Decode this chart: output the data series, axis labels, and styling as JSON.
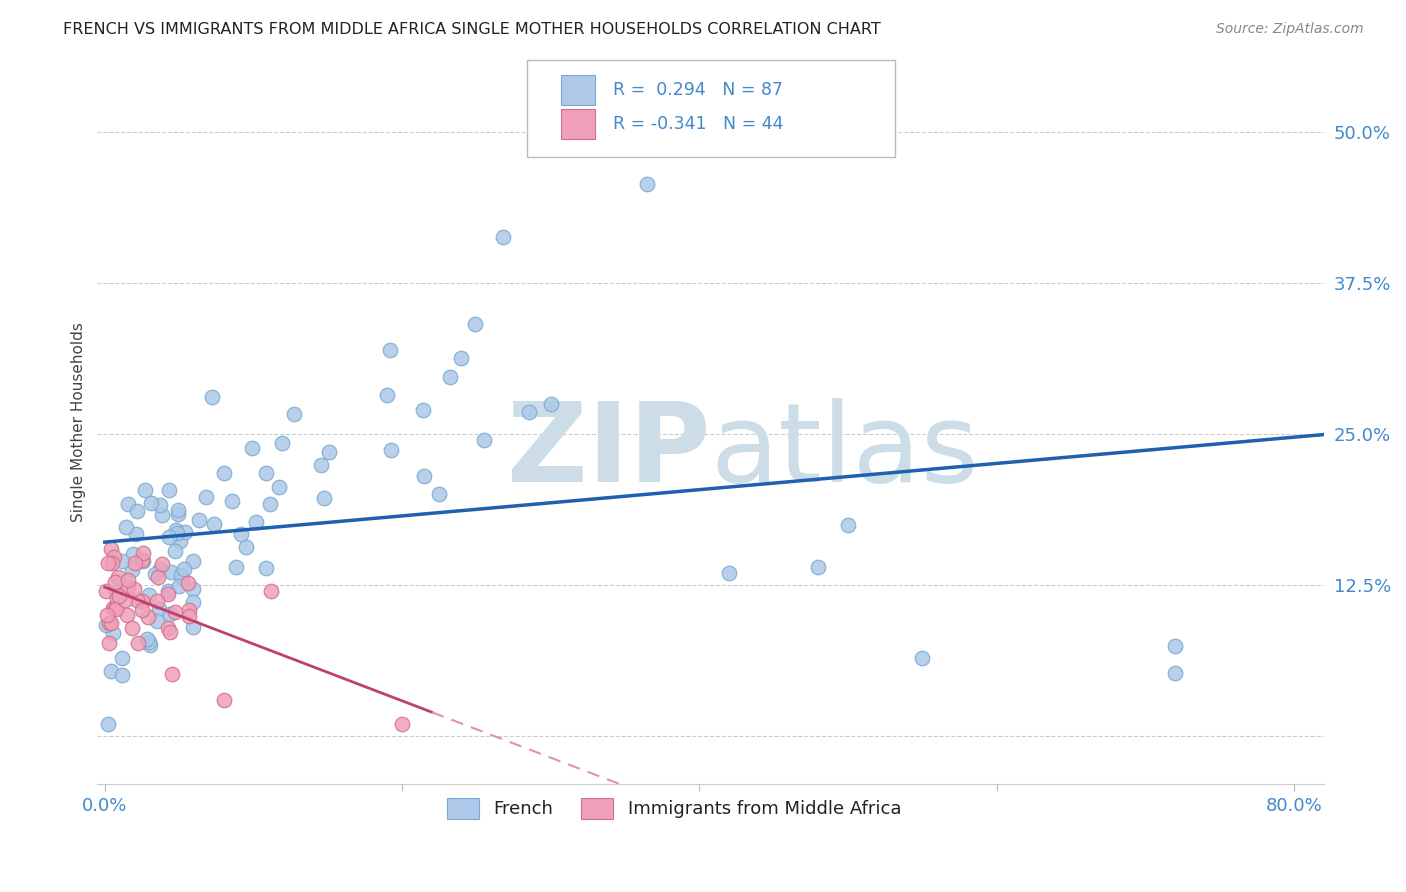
{
  "title": "FRENCH VS IMMIGRANTS FROM MIDDLE AFRICA SINGLE MOTHER HOUSEHOLDS CORRELATION CHART",
  "source": "Source: ZipAtlas.com",
  "ylabel": "Single Mother Households",
  "xlim": [
    -0.005,
    0.82
  ],
  "ylim": [
    -0.04,
    0.56
  ],
  "yticks": [
    0.0,
    0.125,
    0.25,
    0.375,
    0.5
  ],
  "ytick_labels": [
    "",
    "12.5%",
    "25.0%",
    "37.5%",
    "50.0%"
  ],
  "xticks": [
    0.0,
    0.2,
    0.4,
    0.6,
    0.8
  ],
  "xtick_labels": [
    "0.0%",
    "",
    "",
    "",
    "80.0%"
  ],
  "r_french": 0.294,
  "n_french": 87,
  "r_immigrants": -0.341,
  "n_immigrants": 44,
  "blue_scatter_color": "#adc8e8",
  "blue_scatter_edge": "#7aaad0",
  "blue_line_color": "#2060b0",
  "pink_scatter_color": "#f0a0b8",
  "pink_scatter_edge": "#d07090",
  "pink_line_color": "#c04070",
  "pink_dash_color": "#e090b0",
  "legend_label_french": "French",
  "legend_label_immigrants": "Immigrants from Middle Africa",
  "title_color": "#222222",
  "source_color": "#888888",
  "tick_color": "#4488cc",
  "ylabel_color": "#444444",
  "grid_color": "#cccccc",
  "spine_color": "#cccccc",
  "watermark_zip_color": "#ccdde8",
  "watermark_atlas_color": "#ccdde8"
}
